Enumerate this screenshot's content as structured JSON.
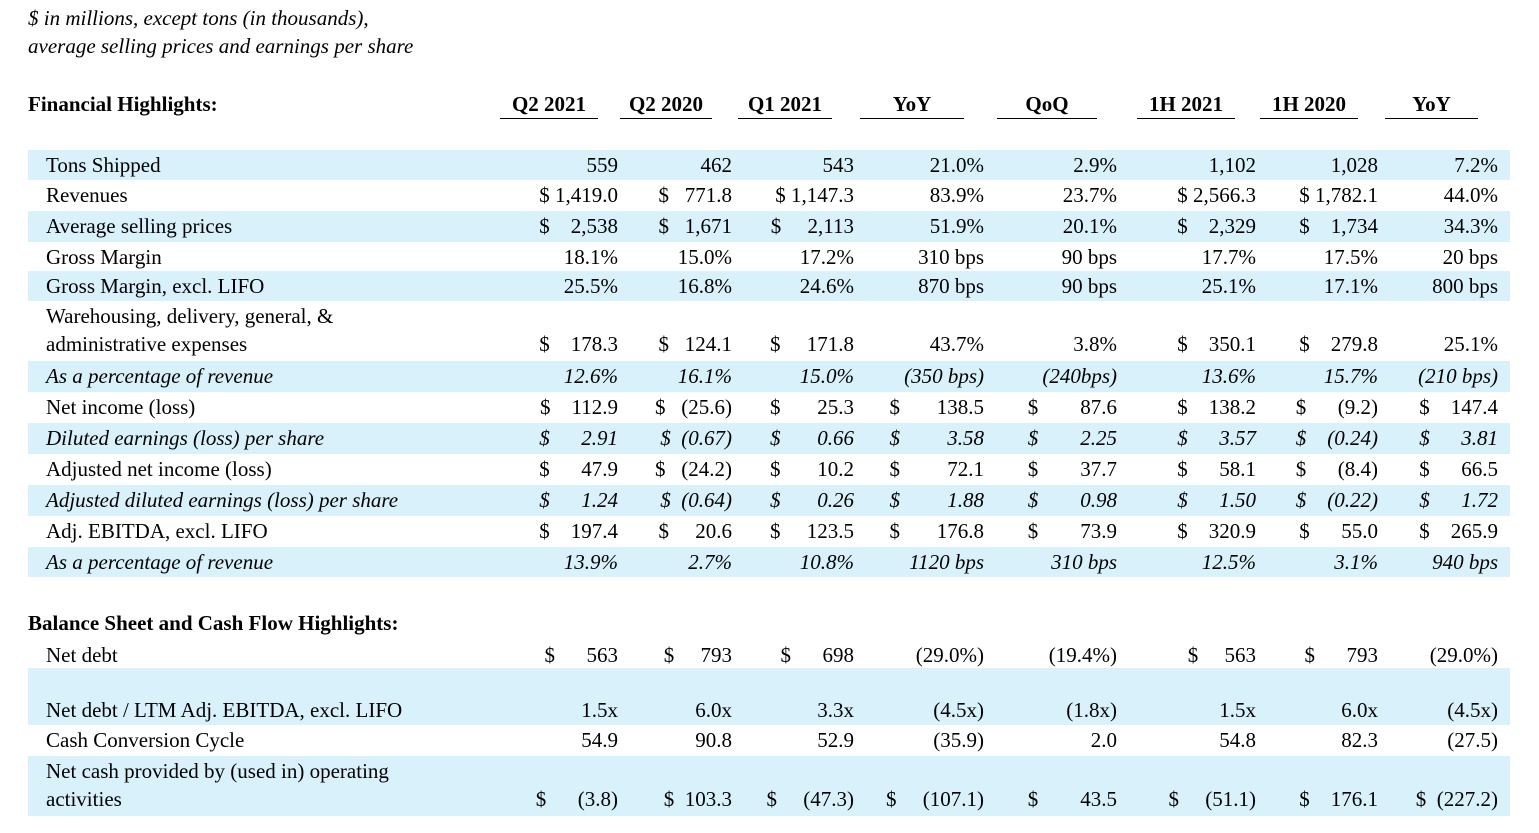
{
  "note": {
    "line1": "$ in millions, except tons (in thousands),",
    "line2": "average selling prices and earnings per share"
  },
  "sections": {
    "financial": "Financial Highlights:",
    "balance": "Balance Sheet and Cash Flow Highlights:"
  },
  "headers": [
    "Q2 2021",
    "Q2 2020",
    "Q1 2021",
    "YoY",
    "QoQ",
    "1H 2021",
    "1H 2020",
    "YoY"
  ],
  "rows": [
    {
      "label": "Tons Shipped",
      "cells": [
        "559",
        "462",
        "543",
        "21.0%",
        "2.9%",
        "1,102",
        "1,028",
        "7.2%"
      ]
    },
    {
      "label": "Revenues",
      "cells": [
        "$ 1,419.0",
        "$   771.8",
        "$ 1,147.3",
        "83.9%",
        "23.7%",
        "$ 2,566.3",
        "$ 1,782.1",
        "44.0%"
      ]
    },
    {
      "label": "Average selling prices",
      "cells": [
        "$    2,538",
        "$   1,671",
        "$     2,113",
        "51.9%",
        "20.1%",
        "$    2,329",
        "$    1,734",
        "34.3%"
      ]
    },
    {
      "label": "Gross Margin",
      "cells": [
        "18.1%",
        "15.0%",
        "17.2%",
        "310 bps",
        "90 bps",
        "17.7%",
        "17.5%",
        "20 bps"
      ]
    },
    {
      "label": "Gross Margin, excl. LIFO",
      "cells": [
        "25.5%",
        "16.8%",
        "24.6%",
        "870 bps",
        "90 bps",
        "25.1%",
        "17.1%",
        "800 bps"
      ]
    },
    {
      "label": "Warehousing, delivery, general, &",
      "label2": "administrative expenses",
      "cells": [
        "$    178.3",
        "$   124.1",
        "$     171.8",
        "43.7%",
        "3.8%",
        "$    350.1",
        "$    279.8",
        "25.1%"
      ]
    },
    {
      "label": "As a percentage of revenue",
      "cells": [
        "12.6%",
        "16.1%",
        "15.0%",
        "(350 bps)",
        "(240bps)",
        "13.6%",
        "15.7%",
        "(210 bps)"
      ]
    },
    {
      "label": "Net income (loss)",
      "cells": [
        "$    112.9",
        "$   (25.6)",
        "$       25.3",
        "$       138.5",
        "$        87.6",
        "$    138.2",
        "$      (9.2)",
        "$    147.4"
      ]
    },
    {
      "label": "Diluted earnings (loss) per share",
      "cells": [
        "$      2.91",
        "$  (0.67)",
        "$       0.66",
        "$         3.58",
        "$        2.25",
        "$      3.57",
        "$    (0.24)",
        "$      3.81"
      ]
    },
    {
      "label": "Adjusted net income (loss)",
      "cells": [
        "$      47.9",
        "$   (24.2)",
        "$       10.2",
        "$         72.1",
        "$        37.7",
        "$      58.1",
        "$      (8.4)",
        "$      66.5"
      ]
    },
    {
      "label": "Adjusted diluted earnings (loss) per share",
      "cells": [
        "$      1.24",
        "$  (0.64)",
        "$       0.26",
        "$         1.88",
        "$        0.98",
        "$      1.50",
        "$    (0.22)",
        "$      1.72"
      ]
    },
    {
      "label": "Adj. EBITDA, excl. LIFO",
      "cells": [
        "$    197.4",
        "$     20.6",
        "$     123.5",
        "$       176.8",
        "$        73.9",
        "$    320.9",
        "$      55.0",
        "$    265.9"
      ]
    },
    {
      "label": "As a percentage of revenue",
      "cells": [
        "13.9%",
        "2.7%",
        "10.8%",
        "1120 bps",
        "310 bps",
        "12.5%",
        "3.1%",
        "940 bps"
      ]
    },
    {
      "label": "Net debt",
      "cells": [
        "$      563",
        "$     793",
        "$      698",
        "(29.0%)",
        "(19.4%)",
        "$     563",
        "$      793",
        "(29.0%)"
      ]
    },
    {
      "label": "Net debt / LTM Adj. EBITDA, excl. LIFO",
      "cells": [
        "1.5x",
        "6.0x",
        "3.3x",
        "(4.5x)",
        "(1.8x)",
        "1.5x",
        "6.0x",
        "(4.5x)"
      ]
    },
    {
      "label": "Cash Conversion Cycle",
      "cells": [
        "54.9",
        "90.8",
        "52.9",
        "(35.9)",
        "2.0",
        "54.8",
        "82.3",
        "(27.5)"
      ]
    },
    {
      "label": "Net cash provided by (used in) operating",
      "label2": "activities",
      "cells": [
        "$      (3.8)",
        "$  103.3",
        "$     (47.3)",
        "$     (107.1)",
        "$        43.5",
        "$     (51.1)",
        "$    176.1",
        "$  (227.2)"
      ]
    }
  ]
}
